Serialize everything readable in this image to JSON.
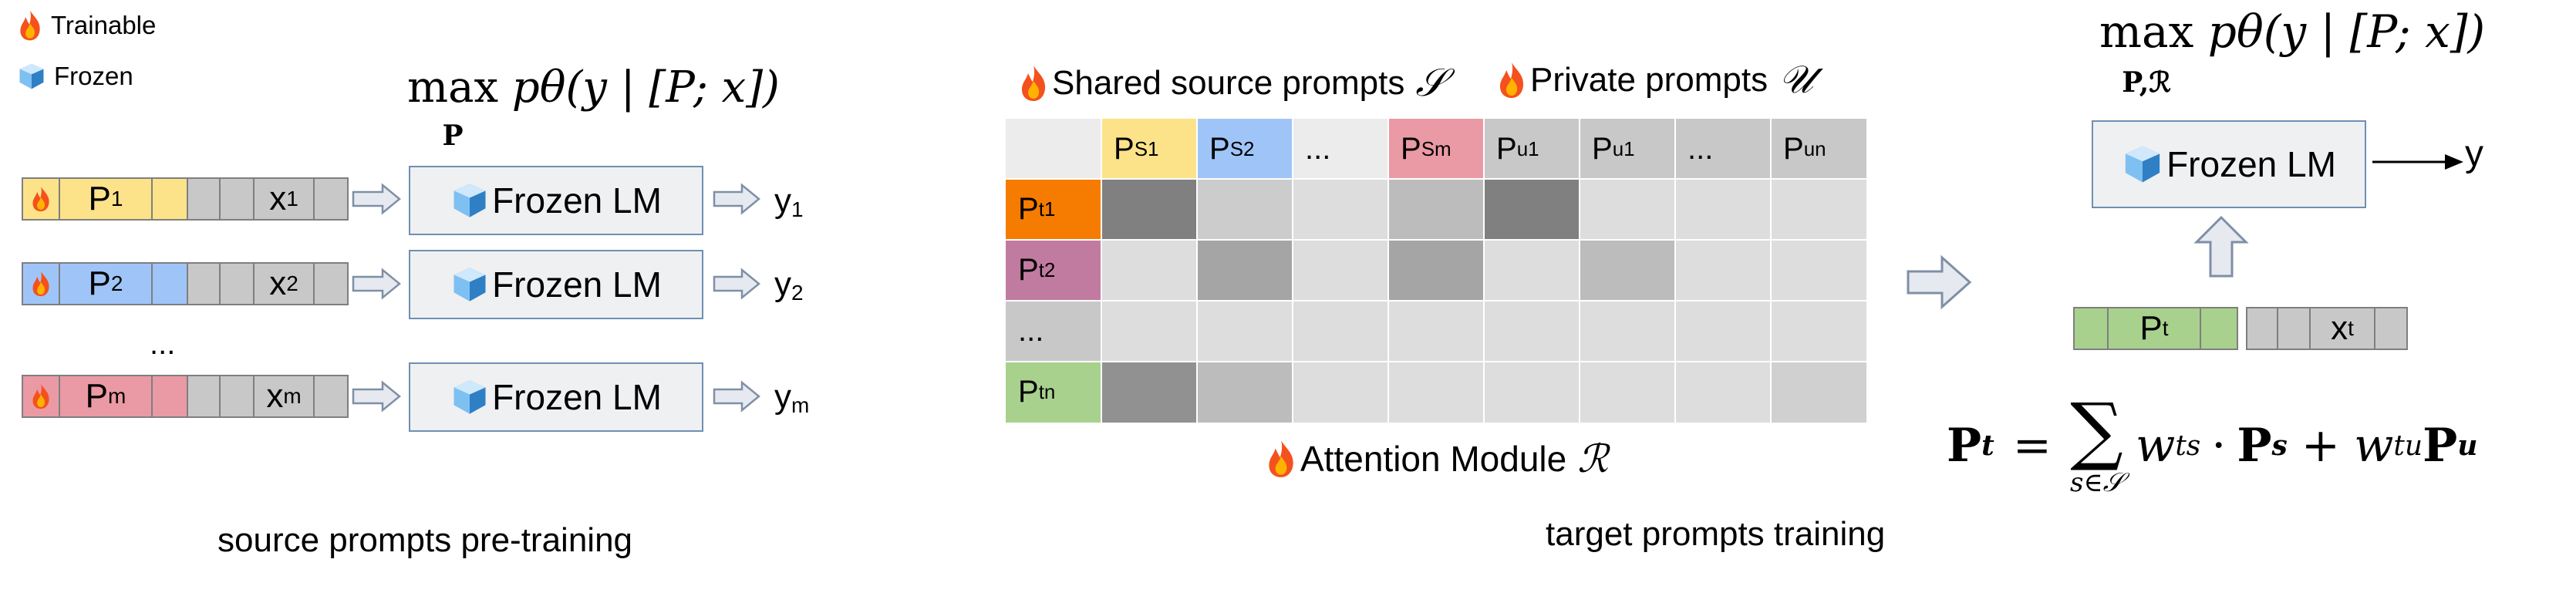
{
  "legend": {
    "trainable": "Trainable",
    "frozen": "Frozen"
  },
  "left": {
    "objective": {
      "max": "max",
      "under": "P",
      "expr": "pθ(y | [P; x])"
    },
    "rows": [
      {
        "prompt": "P",
        "prompt_sub": "1",
        "input": "x",
        "input_sub": "1",
        "lm": "Frozen LM",
        "output": "y",
        "output_sub": "1",
        "color": "#fce38a"
      },
      {
        "prompt": "P",
        "prompt_sub": "2",
        "input": "x",
        "input_sub": "2",
        "lm": "Frozen LM",
        "output": "y",
        "output_sub": "2",
        "color": "#9fc5f8"
      },
      {
        "prompt": "P",
        "prompt_sub": "m",
        "input": "x",
        "input_sub": "m",
        "lm": "Frozen LM",
        "output": "y",
        "output_sub": "m",
        "color": "#ea9aa4"
      }
    ],
    "ellipsis": "...",
    "caption": "source prompts pre-training"
  },
  "middle": {
    "shared_label": "Shared source prompts",
    "shared_symbol": "𝒮",
    "private_label": "Private prompts",
    "private_symbol": "𝒰",
    "columns": [
      {
        "label": "P",
        "sub": "S1",
        "color": "#fce38a"
      },
      {
        "label": "P",
        "sub": "S2",
        "color": "#9fc5f8"
      },
      {
        "label": "...",
        "sub": "",
        "color": "#ececec"
      },
      {
        "label": "P",
        "sub": "Sm",
        "color": "#ea9aa4"
      },
      {
        "label": "P",
        "sub": "u1",
        "color": "#c8c8c8"
      },
      {
        "label": "P",
        "sub": "u1",
        "color": "#c8c8c8"
      },
      {
        "label": "...",
        "sub": "",
        "color": "#c8c8c8"
      },
      {
        "label": "P",
        "sub": "un",
        "color": "#c8c8c8"
      }
    ],
    "rows": [
      {
        "label": "P",
        "sub": "t1",
        "color": "#f57c00"
      },
      {
        "label": "P",
        "sub": "t2",
        "color": "#c27ba0"
      },
      {
        "label": "...",
        "sub": "",
        "color": "#c8c8c8"
      },
      {
        "label": "P",
        "sub": "tn",
        "color": "#a9d18e"
      }
    ],
    "attention_weights": [
      [
        0.5,
        0.15,
        0.07,
        0.22,
        0.5,
        0.07,
        0.07,
        0.07
      ],
      [
        0.07,
        0.33,
        0.07,
        0.33,
        0.07,
        0.22,
        0.07,
        0.07
      ],
      [
        0.07,
        0.07,
        0.07,
        0.07,
        0.07,
        0.07,
        0.07,
        0.07
      ],
      [
        0.42,
        0.22,
        0.07,
        0.07,
        0.07,
        0.07,
        0.07,
        0.13
      ]
    ],
    "attention_label": "Attention Module",
    "attention_symbol": "ℛ",
    "caption": "target prompts training"
  },
  "right": {
    "objective": {
      "max": "max",
      "under": "P,ℛ",
      "expr": "pθ(y | [P; x])"
    },
    "lm": "Frozen LM",
    "output": "y",
    "prompt": "P",
    "prompt_sub": "t",
    "input": "x",
    "input_sub": "t",
    "prompt_color": "#a9d18e",
    "formula": {
      "lhs": "P",
      "lhs_sub": "t",
      "eq": "=",
      "sum_under": "s∈𝒮",
      "term1": "w",
      "term1_sub": "ts",
      "dot": "·",
      "term1b": "P",
      "term1b_sub": "s",
      "plus": "+",
      "term2": "w",
      "term2_sub": "tu",
      "term2b": "P",
      "term2b_sub": "u"
    }
  },
  "colors": {
    "frozen_box_border": "#6f8fb2",
    "frozen_box_fill": "#eff0f2",
    "arrow_fill": "#e6eaf0",
    "arrow_stroke": "#7f8fa6",
    "input_cell": "#c8c8c8"
  }
}
